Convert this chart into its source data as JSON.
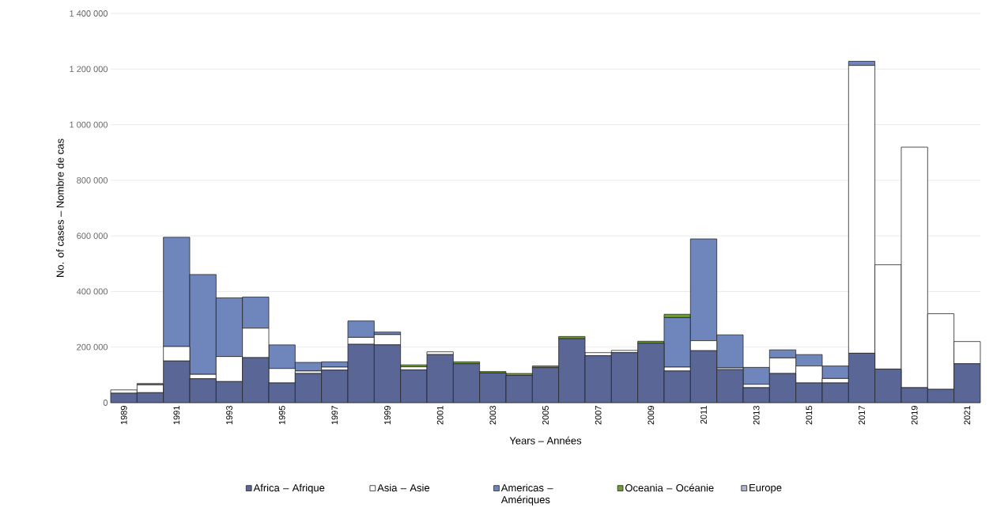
{
  "chart_data": {
    "type": "bar",
    "stacked": true,
    "xlabel": "Years – Années",
    "ylabel": "No. of cases – Nombre de cas",
    "categories": [
      "1989",
      null,
      "1991",
      null,
      "1993",
      null,
      "1995",
      null,
      "1997",
      null,
      "1999",
      null,
      "2001",
      null,
      "2003",
      null,
      "2005",
      null,
      "2007",
      null,
      "2009",
      null,
      "2011",
      null,
      "2013",
      null,
      "2015",
      null,
      "2017",
      null,
      "2019",
      null,
      "2021"
    ],
    "series": [
      {
        "name": "Africa – Afrique",
        "color": "#5a6796",
        "values": [
          34000,
          36000,
          150000,
          86000,
          76000,
          162000,
          71000,
          105000,
          117000,
          210000,
          208000,
          118000,
          173000,
          140000,
          107000,
          98000,
          126000,
          230000,
          169000,
          180000,
          214000,
          114000,
          187000,
          119000,
          54000,
          105000,
          71000,
          71000,
          178000,
          121000,
          54000,
          48000,
          140000
        ]
      },
      {
        "name": "Asia – Asie",
        "color": "#ffffff",
        "values": [
          12000,
          28000,
          52000,
          16000,
          90000,
          106000,
          52000,
          9000,
          11000,
          25000,
          37000,
          11000,
          10000,
          0,
          0,
          0,
          0,
          0,
          11000,
          8000,
          0,
          14000,
          36000,
          6000,
          12000,
          56000,
          61000,
          16000,
          1035000,
          375000,
          865000,
          272000,
          80000
        ]
      },
      {
        "name": "Americas – Amériques",
        "color": "#6f86bd",
        "values": [
          0,
          5000,
          393000,
          359000,
          211000,
          112000,
          85000,
          31000,
          19000,
          59000,
          9000,
          0,
          0,
          0,
          0,
          0,
          0,
          0,
          0,
          0,
          0,
          178000,
          366000,
          119000,
          61000,
          29000,
          41000,
          45000,
          15000,
          0,
          0,
          0,
          0
        ]
      },
      {
        "name": "Oceania – Océanie",
        "color": "#6f9a3a",
        "values": [
          0,
          0,
          0,
          0,
          0,
          0,
          0,
          0,
          0,
          0,
          0,
          7000,
          0,
          7000,
          5000,
          7000,
          6000,
          8000,
          0,
          0,
          7000,
          12000,
          0,
          0,
          0,
          0,
          0,
          0,
          0,
          0,
          0,
          0,
          0
        ]
      },
      {
        "name": "Europe",
        "color": "#b0b4d0",
        "values": [
          0,
          0,
          0,
          0,
          0,
          0,
          0,
          0,
          0,
          0,
          0,
          0,
          0,
          0,
          0,
          0,
          0,
          0,
          0,
          0,
          0,
          0,
          0,
          0,
          0,
          0,
          0,
          0,
          0,
          0,
          0,
          0,
          0
        ]
      }
    ],
    "ylim": [
      0,
      1400000
    ],
    "yticks": [
      0,
      {
        "value": 200000,
        "label": "200 000"
      },
      {
        "value": 400000,
        "label": "400 000"
      },
      {
        "value": 600000,
        "label": "600 000"
      },
      {
        "value": 800000,
        "label": "800 000"
      },
      {
        "value": 1000000,
        "label": "1 000 000"
      },
      {
        "value": 1200000,
        "label": "1 200 000"
      },
      {
        "value": 1400000,
        "label": "1 400 000"
      }
    ],
    "grid": "y",
    "legend": "bottom"
  }
}
